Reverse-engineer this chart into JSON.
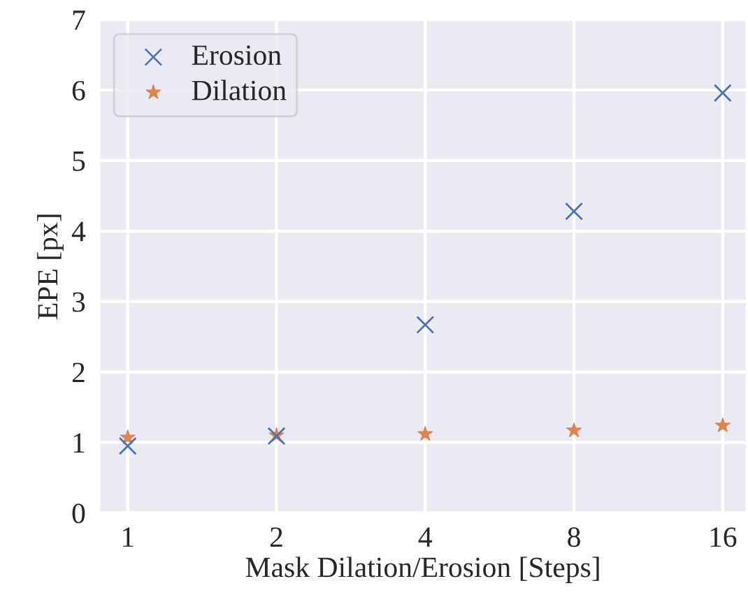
{
  "chart_data": {
    "type": "scatter",
    "xlabel": "Mask Dilation/Erosion [Steps]",
    "ylabel": "EPE [px]",
    "categories": [
      "1",
      "2",
      "4",
      "8",
      "16"
    ],
    "series": [
      {
        "name": "Erosion",
        "color": "#4c72b0",
        "marker": "cross",
        "values": [
          0.95,
          1.09,
          2.67,
          4.28,
          5.96
        ]
      },
      {
        "name": "Dilation",
        "color": "#dd8452",
        "marker": "star",
        "values": [
          1.07,
          1.1,
          1.12,
          1.17,
          1.24
        ]
      }
    ],
    "ylim": [
      0,
      7
    ],
    "yticks": [
      0,
      1,
      2,
      3,
      4,
      5,
      6,
      7
    ],
    "grid": true,
    "legend": "top left"
  }
}
